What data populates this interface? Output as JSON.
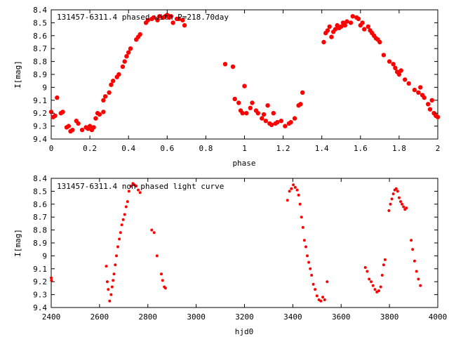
{
  "colors": {
    "marker": "#ff0000",
    "axis": "#000000",
    "background": "#ffffff"
  },
  "chart_data": [
    {
      "type": "scatter",
      "title": "131457-6311.4 phased with P=218.70day",
      "xlabel": "phase",
      "ylabel": "I[mag]",
      "xlim": [
        0,
        2
      ],
      "ylim": [
        9.4,
        8.4
      ],
      "y_inverted": true,
      "grid": false,
      "legend": "none",
      "marker": "large-dot",
      "x_ticks": [
        "0",
        "0.2",
        "0.4",
        "0.6",
        "0.8",
        "1",
        "1.2",
        "1.4",
        "1.6",
        "1.8",
        "2"
      ],
      "y_ticks": [
        "8.4",
        "8.5",
        "8.6",
        "8.7",
        "8.8",
        "8.9",
        "9",
        "9.1",
        "9.2",
        "9.3",
        "9.4"
      ],
      "points": [
        [
          0.0,
          9.19
        ],
        [
          0.01,
          9.23
        ],
        [
          0.02,
          9.22
        ],
        [
          0.03,
          9.08
        ],
        [
          0.05,
          9.2
        ],
        [
          0.06,
          9.19
        ],
        [
          0.08,
          9.31
        ],
        [
          0.09,
          9.3
        ],
        [
          0.1,
          9.34
        ],
        [
          0.11,
          9.33
        ],
        [
          0.13,
          9.26
        ],
        [
          0.14,
          9.28
        ],
        [
          0.16,
          9.33
        ],
        [
          0.18,
          9.31
        ],
        [
          0.19,
          9.32
        ],
        [
          0.2,
          9.3
        ],
        [
          0.21,
          9.33
        ],
        [
          0.22,
          9.31
        ],
        [
          0.23,
          9.24
        ],
        [
          0.24,
          9.2
        ],
        [
          0.25,
          9.21
        ],
        [
          0.27,
          9.19
        ],
        [
          0.27,
          9.1
        ],
        [
          0.28,
          9.07
        ],
        [
          0.3,
          9.04
        ],
        [
          0.31,
          8.98
        ],
        [
          0.32,
          8.95
        ],
        [
          0.34,
          8.92
        ],
        [
          0.35,
          8.9
        ],
        [
          0.37,
          8.84
        ],
        [
          0.38,
          8.8
        ],
        [
          0.39,
          8.76
        ],
        [
          0.4,
          8.73
        ],
        [
          0.41,
          8.7
        ],
        [
          0.44,
          8.63
        ],
        [
          0.45,
          8.61
        ],
        [
          0.46,
          8.59
        ],
        [
          0.49,
          8.5
        ],
        [
          0.5,
          8.48
        ],
        [
          0.52,
          8.47
        ],
        [
          0.53,
          8.46
        ],
        [
          0.55,
          8.48
        ],
        [
          0.56,
          8.45
        ],
        [
          0.58,
          8.46
        ],
        [
          0.59,
          8.45
        ],
        [
          0.6,
          8.44
        ],
        [
          0.61,
          8.46
        ],
        [
          0.62,
          8.45
        ],
        [
          0.63,
          8.5
        ],
        [
          0.65,
          8.47
        ],
        [
          0.66,
          8.47
        ],
        [
          0.68,
          8.48
        ],
        [
          0.69,
          8.52
        ],
        [
          0.9,
          8.82
        ],
        [
          0.94,
          8.84
        ],
        [
          0.95,
          9.09
        ],
        [
          0.97,
          9.12
        ],
        [
          0.98,
          9.18
        ],
        [
          0.99,
          9.2
        ],
        [
          1.0,
          8.99
        ],
        [
          1.01,
          9.2
        ],
        [
          1.03,
          9.16
        ],
        [
          1.04,
          9.12
        ],
        [
          1.06,
          9.18
        ],
        [
          1.07,
          9.2
        ],
        [
          1.09,
          9.24
        ],
        [
          1.1,
          9.21
        ],
        [
          1.11,
          9.26
        ],
        [
          1.12,
          9.14
        ],
        [
          1.13,
          9.28
        ],
        [
          1.14,
          9.29
        ],
        [
          1.15,
          9.2
        ],
        [
          1.16,
          9.28
        ],
        [
          1.17,
          9.27
        ],
        [
          1.19,
          9.26
        ],
        [
          1.21,
          9.3
        ],
        [
          1.23,
          9.28
        ],
        [
          1.24,
          9.27
        ],
        [
          1.26,
          9.24
        ],
        [
          1.28,
          9.14
        ],
        [
          1.29,
          9.13
        ],
        [
          1.3,
          9.04
        ],
        [
          1.41,
          8.65
        ],
        [
          1.42,
          8.58
        ],
        [
          1.43,
          8.56
        ],
        [
          1.44,
          8.53
        ],
        [
          1.45,
          8.61
        ],
        [
          1.46,
          8.57
        ],
        [
          1.47,
          8.55
        ],
        [
          1.48,
          8.52
        ],
        [
          1.49,
          8.54
        ],
        [
          1.5,
          8.53
        ],
        [
          1.51,
          8.5
        ],
        [
          1.52,
          8.52
        ],
        [
          1.53,
          8.49
        ],
        [
          1.55,
          8.5
        ],
        [
          1.56,
          8.45
        ],
        [
          1.58,
          8.46
        ],
        [
          1.59,
          8.47
        ],
        [
          1.6,
          8.52
        ],
        [
          1.61,
          8.5
        ],
        [
          1.62,
          8.55
        ],
        [
          1.64,
          8.53
        ],
        [
          1.65,
          8.56
        ],
        [
          1.66,
          8.58
        ],
        [
          1.67,
          8.6
        ],
        [
          1.68,
          8.62
        ],
        [
          1.69,
          8.63
        ],
        [
          1.7,
          8.65
        ],
        [
          1.72,
          8.75
        ],
        [
          1.75,
          8.8
        ],
        [
          1.77,
          8.82
        ],
        [
          1.78,
          8.85
        ],
        [
          1.79,
          8.88
        ],
        [
          1.8,
          8.9
        ],
        [
          1.81,
          8.87
        ],
        [
          1.83,
          8.94
        ],
        [
          1.85,
          8.97
        ],
        [
          1.88,
          9.02
        ],
        [
          1.9,
          9.04
        ],
        [
          1.91,
          9.0
        ],
        [
          1.92,
          9.06
        ],
        [
          1.93,
          9.08
        ],
        [
          1.95,
          9.13
        ],
        [
          1.96,
          9.17
        ],
        [
          1.97,
          9.1
        ],
        [
          1.98,
          9.2
        ],
        [
          1.99,
          9.22
        ],
        [
          2.0,
          9.23
        ]
      ]
    },
    {
      "type": "scatter",
      "title": "131457-6311.4 non phased light curve",
      "xlabel": "hjd0",
      "ylabel": "I[mag]",
      "xlim": [
        2400,
        4000
      ],
      "ylim": [
        9.4,
        8.4
      ],
      "y_inverted": true,
      "grid": false,
      "legend": "none",
      "marker": "small-dot",
      "x_ticks": [
        "2400",
        "2600",
        "2800",
        "3000",
        "3200",
        "3400",
        "3600",
        "3800",
        "4000"
      ],
      "y_ticks": [
        "8.4",
        "8.5",
        "8.6",
        "8.7",
        "8.8",
        "8.9",
        "9",
        "9.1",
        "9.2",
        "9.3",
        "9.4"
      ],
      "points": [
        [
          2400,
          9.17
        ],
        [
          2401,
          9.19
        ],
        [
          2628,
          9.08
        ],
        [
          2632,
          9.2
        ],
        [
          2636,
          9.26
        ],
        [
          2642,
          9.35
        ],
        [
          2648,
          9.3
        ],
        [
          2652,
          9.24
        ],
        [
          2656,
          9.19
        ],
        [
          2660,
          9.14
        ],
        [
          2665,
          9.07
        ],
        [
          2670,
          9.0
        ],
        [
          2676,
          8.93
        ],
        [
          2682,
          8.87
        ],
        [
          2687,
          8.82
        ],
        [
          2692,
          8.76
        ],
        [
          2698,
          8.72
        ],
        [
          2704,
          8.68
        ],
        [
          2710,
          8.62
        ],
        [
          2716,
          8.58
        ],
        [
          2722,
          8.5
        ],
        [
          2730,
          8.46
        ],
        [
          2738,
          8.44
        ],
        [
          2744,
          8.45
        ],
        [
          2752,
          8.46
        ],
        [
          2760,
          8.49
        ],
        [
          2768,
          8.51
        ],
        [
          2816,
          8.8
        ],
        [
          2826,
          8.82
        ],
        [
          2838,
          9.0
        ],
        [
          2856,
          9.14
        ],
        [
          2861,
          9.19
        ],
        [
          2868,
          9.24
        ],
        [
          2873,
          9.25
        ],
        [
          3378,
          8.57
        ],
        [
          3386,
          8.5
        ],
        [
          3394,
          8.48
        ],
        [
          3402,
          8.45
        ],
        [
          3410,
          8.47
        ],
        [
          3418,
          8.49
        ],
        [
          3424,
          8.53
        ],
        [
          3430,
          8.6
        ],
        [
          3436,
          8.7
        ],
        [
          3442,
          8.78
        ],
        [
          3448,
          8.88
        ],
        [
          3454,
          8.93
        ],
        [
          3460,
          9.0
        ],
        [
          3466,
          9.05
        ],
        [
          3472,
          9.1
        ],
        [
          3478,
          9.15
        ],
        [
          3485,
          9.22
        ],
        [
          3492,
          9.26
        ],
        [
          3500,
          9.31
        ],
        [
          3508,
          9.34
        ],
        [
          3516,
          9.35
        ],
        [
          3524,
          9.32
        ],
        [
          3532,
          9.34
        ],
        [
          3542,
          9.2
        ],
        [
          3700,
          9.09
        ],
        [
          3708,
          9.12
        ],
        [
          3716,
          9.18
        ],
        [
          3724,
          9.2
        ],
        [
          3732,
          9.23
        ],
        [
          3740,
          9.26
        ],
        [
          3748,
          9.28
        ],
        [
          3756,
          9.27
        ],
        [
          3764,
          9.24
        ],
        [
          3770,
          9.15
        ],
        [
          3776,
          9.07
        ],
        [
          3782,
          9.03
        ],
        [
          3798,
          8.65
        ],
        [
          3804,
          8.6
        ],
        [
          3810,
          8.56
        ],
        [
          3816,
          8.52
        ],
        [
          3822,
          8.49
        ],
        [
          3828,
          8.48
        ],
        [
          3834,
          8.5
        ],
        [
          3840,
          8.55
        ],
        [
          3846,
          8.58
        ],
        [
          3852,
          8.6
        ],
        [
          3858,
          8.62
        ],
        [
          3864,
          8.64
        ],
        [
          3870,
          8.63
        ],
        [
          3890,
          8.88
        ],
        [
          3896,
          8.95
        ],
        [
          3904,
          9.04
        ],
        [
          3912,
          9.12
        ],
        [
          3920,
          9.18
        ],
        [
          3928,
          9.23
        ]
      ]
    }
  ]
}
